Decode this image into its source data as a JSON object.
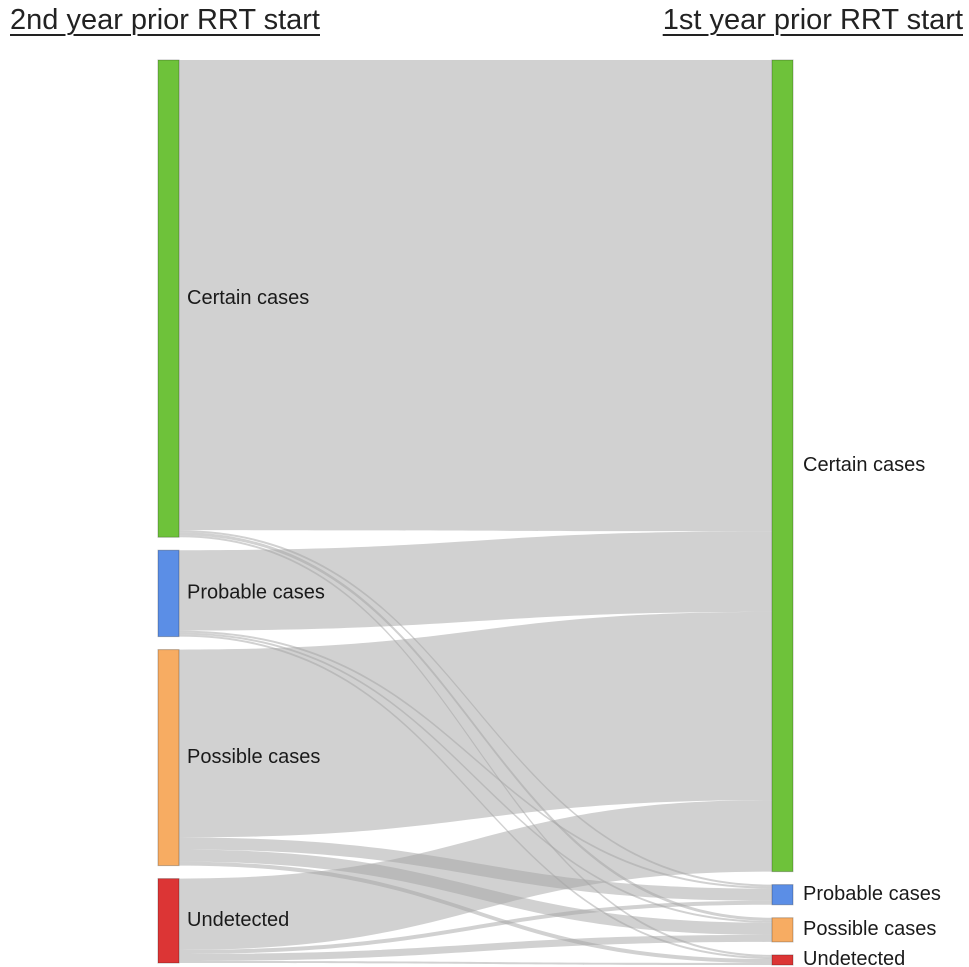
{
  "titles": {
    "left": "2nd year prior RRT start",
    "right": "1st year prior RRT start"
  },
  "colors": {
    "certain": "#6ec23a",
    "probable": "#5b8ee6",
    "possible": "#f7ac62",
    "undetected": "#dc3535",
    "link": "#a3a3a3"
  },
  "nodes": {
    "left": [
      {
        "id": "L_certain",
        "label": "Certain cases",
        "color": "certain",
        "value": 475
      },
      {
        "id": "L_probable",
        "label": "Probable cases",
        "color": "probable",
        "value": 86
      },
      {
        "id": "L_possible",
        "label": "Possible cases",
        "color": "possible",
        "value": 215
      },
      {
        "id": "L_undetected",
        "label": "Undetected",
        "color": "undetected",
        "value": 84
      }
    ],
    "right": [
      {
        "id": "R_certain",
        "label": "Certain cases",
        "color": "certain",
        "value": 806
      },
      {
        "id": "R_probable",
        "label": "Probable cases",
        "color": "probable",
        "value": 20
      },
      {
        "id": "R_possible",
        "label": "Possible cases",
        "color": "possible",
        "value": 24
      },
      {
        "id": "R_undetected",
        "label": "Undetected",
        "color": "undetected",
        "value": 10
      }
    ]
  },
  "links": [
    {
      "source": "L_certain",
      "target": "R_certain",
      "value": 468
    },
    {
      "source": "L_certain",
      "target": "R_probable",
      "value": 2
    },
    {
      "source": "L_certain",
      "target": "R_possible",
      "value": 3
    },
    {
      "source": "L_certain",
      "target": "R_undetected",
      "value": 2
    },
    {
      "source": "L_probable",
      "target": "R_certain",
      "value": 80
    },
    {
      "source": "L_probable",
      "target": "R_probable",
      "value": 2
    },
    {
      "source": "L_probable",
      "target": "R_possible",
      "value": 2
    },
    {
      "source": "L_probable",
      "target": "R_undetected",
      "value": 2
    },
    {
      "source": "L_possible",
      "target": "R_certain",
      "value": 187
    },
    {
      "source": "L_possible",
      "target": "R_probable",
      "value": 12
    },
    {
      "source": "L_possible",
      "target": "R_possible",
      "value": 12
    },
    {
      "source": "L_possible",
      "target": "R_undetected",
      "value": 4
    },
    {
      "source": "L_undetected",
      "target": "R_certain",
      "value": 71
    },
    {
      "source": "L_undetected",
      "target": "R_probable",
      "value": 4
    },
    {
      "source": "L_undetected",
      "target": "R_possible",
      "value": 7
    },
    {
      "source": "L_undetected",
      "target": "R_undetected",
      "value": 2
    }
  ]
}
